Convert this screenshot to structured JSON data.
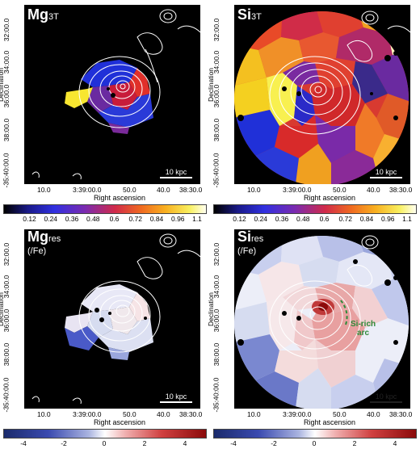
{
  "panels": [
    {
      "id": "mg3t",
      "title_main": "Mg",
      "title_sub": "3T",
      "title_sub2": "",
      "scale": "10 kpc",
      "dark": false
    },
    {
      "id": "si3t",
      "title_main": "Si",
      "title_sub": "3T",
      "title_sub2": "",
      "scale": "10 kpc",
      "dark": false
    },
    {
      "id": "mgres",
      "title_main": "Mg",
      "title_sub": "res",
      "title_sub2": "(/Fe)",
      "scale": "10 kpc",
      "dark": false
    },
    {
      "id": "sires",
      "title_main": "Si",
      "title_sub": "res",
      "title_sub2": "(/Fe)",
      "scale": "10 kpc",
      "dark": true
    }
  ],
  "axes": {
    "ylabel": "Declination",
    "xlabel": "Right ascension",
    "yticks": [
      "32:00.0",
      "34:00.0",
      "36:00.0",
      "38:00.0",
      "-35:40:00.0"
    ],
    "xticks": [
      "10.0",
      "3:39:00.0",
      "50.0",
      "40.0",
      "38:30.0"
    ]
  },
  "colorbars": {
    "abundance": {
      "ticks": [
        "0.12",
        "0.24",
        "0.36",
        "0.48",
        "0.6",
        "0.72",
        "0.84",
        "0.96",
        "1.1"
      ]
    },
    "residual": {
      "ticks": [
        "-4",
        "-2",
        "0",
        "2",
        "4"
      ]
    }
  },
  "annotation": {
    "line1": "Si-rich",
    "line2": "arc"
  },
  "colors": {
    "accent_green": "#2e8b3a",
    "residual_neg": "#1a2a6b",
    "residual_pos": "#8b0a0a"
  }
}
